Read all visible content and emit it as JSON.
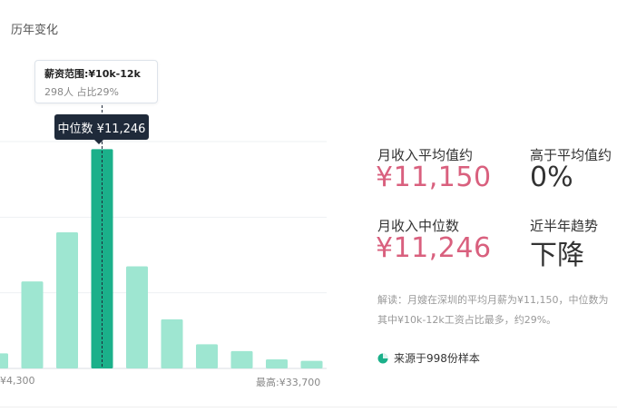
{
  "section": {
    "title": "历年变化"
  },
  "tooltip": {
    "range_label": "薪资范围:¥10k-12k",
    "detail": "298人 占比29%"
  },
  "median_tag": "中位数 ¥11,246",
  "axis": {
    "min_label": "¥4,300",
    "max_label": "最高:¥33,700"
  },
  "colors": {
    "bar": "#9ee6d1",
    "bar_highlight": "#1bb08a",
    "accent_pink": "#d9607e",
    "tag_bg": "#1f2a3a"
  },
  "chart_data": {
    "type": "bar",
    "categories": [
      "",
      "",
      "",
      "¥10k-12k",
      "",
      "",
      "",
      "",
      "",
      ""
    ],
    "values": [
      2,
      11.5,
      18,
      29,
      13.5,
      6.5,
      3.2,
      2.3,
      1.2,
      1.0
    ],
    "highlight_index": 3,
    "unit": "%",
    "ylim": [
      0,
      30
    ],
    "grid": true
  },
  "stats": {
    "avg_label": "月收入平均值约",
    "avg_value": "¥11,150",
    "above_label": "高于平均值约",
    "above_value": "0%",
    "median_label": "月收入中位数",
    "median_value": "¥11,246",
    "trend_label": "近半年趋势",
    "trend_value": "下降"
  },
  "description": {
    "line1": "解读：月嫂在深圳的平均月薪为¥11,150，中位数为",
    "line2": "其中¥10k-12k工资占比最多，约29%。"
  },
  "source": {
    "text": "来源于998份样本",
    "icon": "pie-chart-icon"
  }
}
